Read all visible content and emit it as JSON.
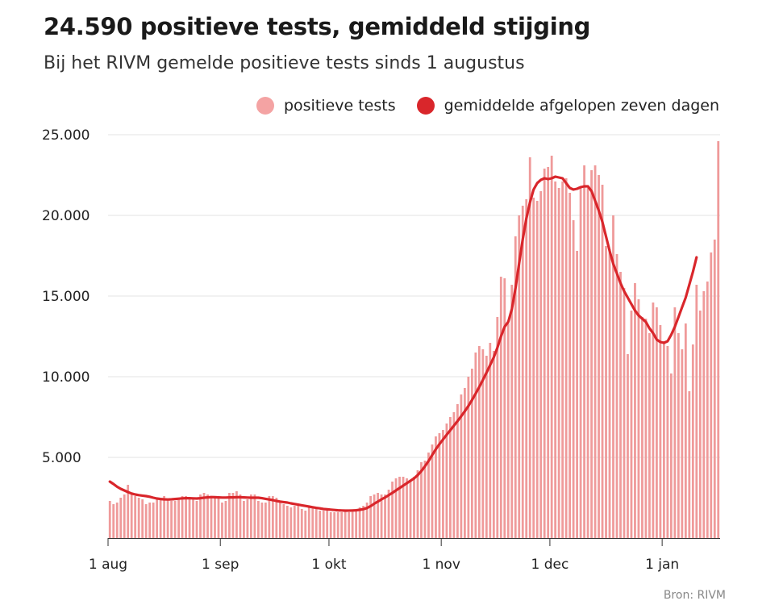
{
  "header": {
    "title": "24.590 positieve tests, gemiddeld stijging",
    "subtitle": "Bij het RIVM gemelde positieve tests sinds 1 augustus"
  },
  "legend": {
    "bars_label": "positieve tests",
    "line_label": "gemiddelde afgelopen zeven dagen"
  },
  "source": "Bron: RIVM",
  "colors": {
    "bar": "#ef9a9a",
    "line": "#d9262b",
    "grid": "#e3e3e3"
  },
  "chart_data": {
    "type": "bar",
    "title": "24.590 positieve tests, gemiddeld stijging",
    "xlabel": "",
    "ylabel": "",
    "ylim": [
      0,
      25000
    ],
    "yticks": [
      5000,
      10000,
      15000,
      20000,
      25000
    ],
    "ytick_labels": [
      "5.000",
      "10.000",
      "15.000",
      "20.000",
      "25.000"
    ],
    "xtick_labels": [
      {
        "label": "1 aug",
        "day": 0
      },
      {
        "label": "1 sep",
        "day": 31
      },
      {
        "label": "1 okt",
        "day": 61
      },
      {
        "label": "1 nov",
        "day": 92
      },
      {
        "label": "1 dec",
        "day": 122
      },
      {
        "label": "1 jan",
        "day": 153
      }
    ],
    "series": [
      {
        "name": "positieve tests",
        "type": "bar",
        "values": [
          2300,
          2100,
          2200,
          2500,
          2700,
          3300,
          2800,
          2600,
          2500,
          2400,
          2100,
          2200,
          2200,
          2400,
          2400,
          2600,
          2400,
          2300,
          2300,
          2500,
          2600,
          2600,
          2500,
          2400,
          2300,
          2700,
          2800,
          2700,
          2600,
          2500,
          2500,
          2200,
          2300,
          2800,
          2800,
          2900,
          2700,
          2300,
          2400,
          2700,
          2700,
          2300,
          2200,
          2200,
          2600,
          2600,
          2500,
          2200,
          2100,
          2000,
          1900,
          2000,
          2000,
          1800,
          1700,
          1900,
          1900,
          1800,
          1700,
          1700,
          1700,
          1600,
          1600,
          1600,
          1600,
          1700,
          1600,
          1700,
          1800,
          1900,
          2000,
          2200,
          2600,
          2700,
          2800,
          2700,
          2700,
          3000,
          3500,
          3700,
          3800,
          3800,
          3700,
          3600,
          3800,
          4200,
          4700,
          4800,
          5300,
          5800,
          6300,
          6500,
          6700,
          7100,
          7500,
          7800,
          8300,
          8900,
          9300,
          10000,
          10500,
          11500,
          11900,
          11700,
          11300,
          12100,
          11600,
          13700,
          16200,
          16100,
          13300,
          15700,
          18700,
          20000,
          20600,
          21000,
          23600,
          21100,
          20900,
          21500,
          22900,
          23000,
          23700,
          22100,
          21700,
          22100,
          22300,
          21400,
          19700,
          17800,
          21700,
          23100,
          21700,
          22800,
          23100,
          22500,
          21900,
          18100,
          17900,
          20000,
          17600,
          16500,
          15500,
          11400,
          14100,
          15800,
          14800,
          13700,
          13600,
          12700,
          14600,
          14300,
          13200,
          12200,
          11900,
          10200,
          14300,
          12700,
          11700,
          13300,
          9100,
          12000,
          15700,
          14100,
          15300,
          15900,
          17700,
          18500,
          24600
        ]
      },
      {
        "name": "gemiddelde afgelopen zeven dagen",
        "type": "line",
        "values": [
          3500,
          3350,
          3180,
          3050,
          2950,
          2850,
          2760,
          2700,
          2660,
          2630,
          2600,
          2560,
          2500,
          2450,
          2420,
          2400,
          2390,
          2400,
          2420,
          2440,
          2460,
          2470,
          2470,
          2460,
          2450,
          2470,
          2500,
          2520,
          2540,
          2530,
          2520,
          2510,
          2510,
          2520,
          2520,
          2530,
          2530,
          2520,
          2510,
          2500,
          2500,
          2500,
          2470,
          2430,
          2390,
          2350,
          2300,
          2260,
          2230,
          2200,
          2150,
          2110,
          2070,
          2030,
          1990,
          1950,
          1910,
          1870,
          1840,
          1800,
          1780,
          1760,
          1740,
          1720,
          1710,
          1700,
          1700,
          1710,
          1720,
          1750,
          1790,
          1860,
          1980,
          2130,
          2260,
          2400,
          2520,
          2660,
          2800,
          2950,
          3100,
          3250,
          3400,
          3550,
          3700,
          3900,
          4150,
          4450,
          4780,
          5150,
          5500,
          5820,
          6110,
          6400,
          6680,
          6970,
          7250,
          7550,
          7860,
          8190,
          8560,
          8950,
          9360,
          9800,
          10250,
          10720,
          11200,
          11800,
          12500,
          13100,
          13400,
          14200,
          15500,
          17000,
          18500,
          19800,
          20800,
          21600,
          22000,
          22200,
          22300,
          22250,
          22300,
          22400,
          22350,
          22300,
          22000,
          21700,
          21600,
          21650,
          21750,
          21800,
          21800,
          21500,
          20900,
          20300,
          19600,
          18700,
          17800,
          17000,
          16400,
          15800,
          15300,
          14900,
          14500,
          14100,
          13800,
          13600,
          13400,
          13000,
          12700,
          12300,
          12150,
          12100,
          12200,
          12600,
          13100,
          13700,
          14300,
          14900,
          15700,
          16500,
          17400
        ]
      }
    ]
  }
}
